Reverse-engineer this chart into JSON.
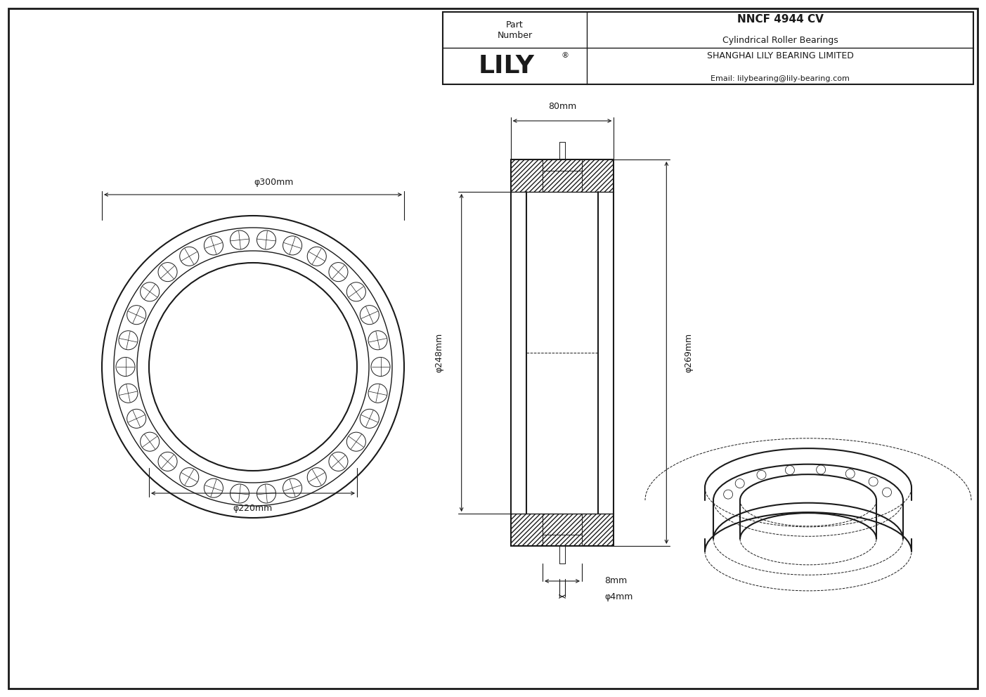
{
  "bg_color": "#ffffff",
  "line_color": "#1a1a1a",
  "title": "NNCF 4944 CV",
  "subtitle": "Cylindrical Roller Bearings",
  "company": "SHANGHAI LILY BEARING LIMITED",
  "email": "Email: lilybearing@lily-bearing.com",
  "part_label": "Part\nNumber",
  "logo": "LILY",
  "dim_od": "φ300mm",
  "dim_id": "φ220mm",
  "dim_h248": "φ248mm",
  "dim_od269": "φ269mm",
  "dim_w": "80mm",
  "dim_bore": "φ4mm",
  "dim_groove": "8mm",
  "n_rollers": 30
}
